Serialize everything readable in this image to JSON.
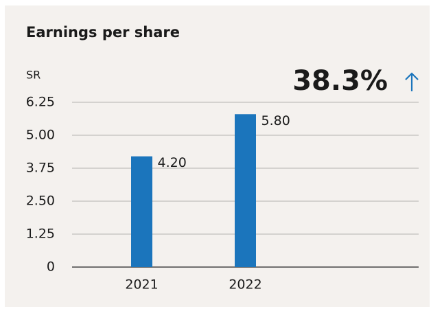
{
  "chart_data": {
    "type": "bar",
    "title": "Earnings per share",
    "ylabel": "SR",
    "annotation": "38.3%",
    "categories": [
      "2021",
      "2022"
    ],
    "values": [
      4.2,
      5.8
    ],
    "value_labels": [
      "4.20",
      "5.80"
    ],
    "color": "#1b75bc",
    "ylim": [
      0,
      6.25
    ],
    "yticks": [
      0,
      1.25,
      {
        "value": 2.5,
        "label": "2.50"
      },
      3.75,
      {
        "value": 5,
        "label": "5.00"
      },
      6.25
    ],
    "grid": true
  }
}
